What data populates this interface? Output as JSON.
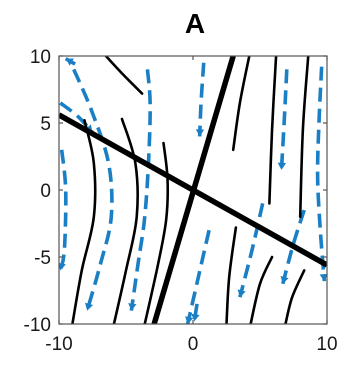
{
  "panel": {
    "title": "A"
  },
  "axes": {
    "xlim": [
      -10,
      10
    ],
    "ylim": [
      -10,
      10
    ],
    "xticks": [
      "-10",
      "0",
      "10"
    ],
    "yticks": [
      "10",
      "5",
      "0",
      "-5",
      "-10"
    ]
  },
  "colors": {
    "nullcline": "#000000",
    "trajectory": "#000000",
    "vector_field": "#1a7fc4",
    "axes_frame": "#555555"
  },
  "chart_data": {
    "type": "phase-portrait",
    "xlim": [
      -10,
      10
    ],
    "ylim": [
      -10,
      10
    ],
    "nullclines": [
      {
        "points": [
          [
            -10,
            5.6
          ],
          [
            10,
            -5.6
          ]
        ]
      },
      {
        "points": [
          [
            -2.9,
            -10
          ],
          [
            3,
            10
          ]
        ]
      }
    ],
    "trajectories": [
      [
        [
          -8.1,
          5.2
        ],
        [
          -7.4,
          2.0
        ],
        [
          -7.4,
          -2.0
        ],
        [
          -8.3,
          -6.0
        ],
        [
          -9.0,
          -10.0
        ]
      ],
      [
        [
          -5.3,
          5.3
        ],
        [
          -4.3,
          2.0
        ],
        [
          -4.2,
          -2.0
        ],
        [
          -5.0,
          -6.0
        ],
        [
          -5.9,
          -10.0
        ]
      ],
      [
        [
          -2.2,
          3.5
        ],
        [
          -1.9,
          0.8
        ],
        [
          -2.0,
          -2.2
        ],
        [
          -2.6,
          -5.5
        ],
        [
          -3.6,
          -10.0
        ]
      ],
      [
        [
          -6.5,
          10.0
        ],
        [
          -5.2,
          8.6
        ],
        [
          -3.8,
          7.2
        ]
      ],
      [
        [
          6.2,
          10.0
        ],
        [
          5.9,
          4.5
        ],
        [
          5.7,
          -1.0
        ]
      ],
      [
        [
          8.6,
          10.0
        ],
        [
          8.2,
          4.5
        ],
        [
          8.0,
          -2.0
        ]
      ],
      [
        [
          3.0,
          3.0
        ],
        [
          3.5,
          6.5
        ],
        [
          4.2,
          10.0
        ]
      ],
      [
        [
          3.2,
          -2.8
        ],
        [
          2.7,
          -6.5
        ],
        [
          2.5,
          -10.0
        ]
      ],
      [
        [
          5.9,
          -5.0
        ],
        [
          5.0,
          -7.0
        ],
        [
          4.3,
          -10.0
        ]
      ],
      [
        [
          8.3,
          -6.0
        ],
        [
          7.4,
          -8.0
        ],
        [
          6.9,
          -10.0
        ]
      ]
    ],
    "vector_curves": [
      [
        [
          -8.9,
          9.0
        ],
        [
          -7.6,
          6.0
        ],
        [
          -6.3,
          2.0
        ],
        [
          -6.1,
          -2.0
        ],
        [
          -6.9,
          -5.5
        ],
        [
          -7.9,
          -9.0
        ]
      ],
      [
        [
          -3.4,
          9.0
        ],
        [
          -3.2,
          6.5
        ],
        [
          -3.3,
          2.5
        ],
        [
          -3.6,
          -2.0
        ],
        [
          -4.1,
          -5.5
        ],
        [
          -4.6,
          -9.0
        ]
      ],
      [
        [
          0.8,
          9.5
        ],
        [
          0.6,
          6.5
        ],
        [
          0.5,
          4.0
        ]
      ],
      [
        [
          -9.9,
          6.5
        ],
        [
          -8.6,
          5.5
        ],
        [
          -7.5,
          4.3
        ]
      ],
      [
        [
          -9.8,
          3.0
        ],
        [
          -9.5,
          0.0
        ],
        [
          -9.6,
          -4.5
        ],
        [
          -9.9,
          -6.0
        ]
      ],
      [
        [
          7.0,
          9.0
        ],
        [
          6.8,
          5.0
        ],
        [
          6.6,
          1.5
        ]
      ],
      [
        [
          9.6,
          9.2
        ],
        [
          9.4,
          5.0
        ],
        [
          9.3,
          1.0
        ],
        [
          9.5,
          -3.0
        ],
        [
          9.8,
          -6.8
        ]
      ],
      [
        [
          1.2,
          -3.0
        ],
        [
          0.4,
          -6.5
        ],
        [
          -0.4,
          -10.0
        ]
      ],
      [
        [
          5.2,
          -1.0
        ],
        [
          4.4,
          -4.5
        ],
        [
          3.5,
          -8.0
        ]
      ],
      [
        [
          8.3,
          -1.5
        ],
        [
          7.5,
          -4.0
        ],
        [
          6.7,
          -7.0
        ]
      ],
      [
        [
          -8.8,
          9.4
        ],
        [
          -9.5,
          9.8
        ]
      ],
      [
        [
          0.3,
          -8.5
        ],
        [
          0.1,
          -9.8
        ]
      ]
    ]
  }
}
